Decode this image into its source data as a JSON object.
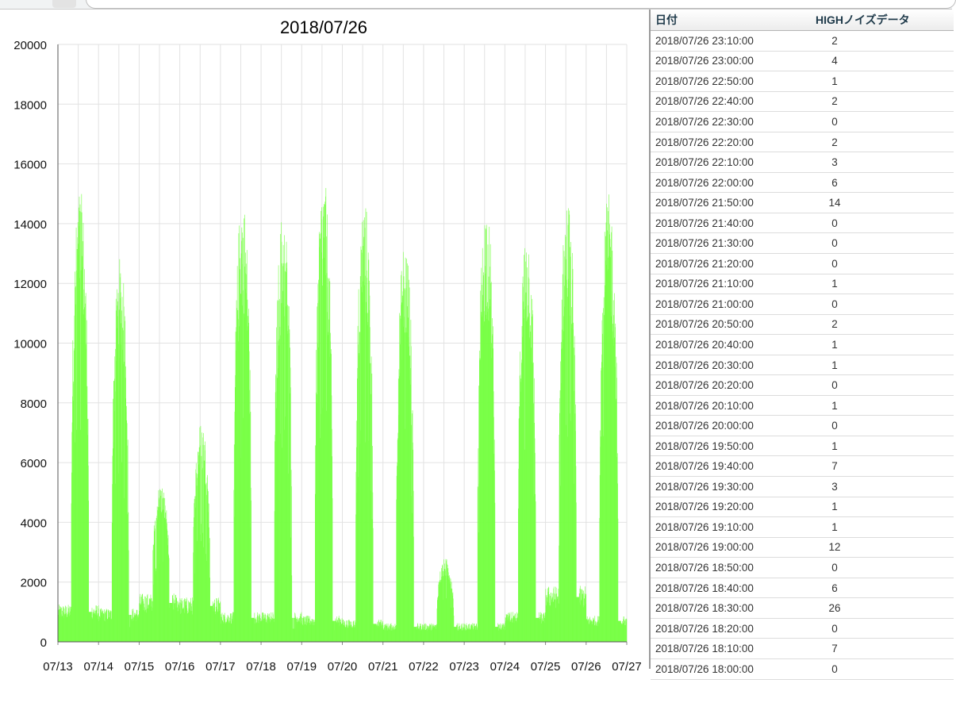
{
  "browser": {},
  "chart_data": {
    "type": "bar",
    "title": "2018/07/26",
    "xlabel": "",
    "ylabel": "",
    "ylim": [
      0,
      20000
    ],
    "yticks": [
      0,
      2000,
      4000,
      6000,
      8000,
      10000,
      12000,
      14000,
      16000,
      18000,
      20000
    ],
    "x_tick_labels": [
      "07/13",
      "07/14",
      "07/15",
      "07/16",
      "07/17",
      "07/18",
      "07/19",
      "07/20",
      "07/21",
      "07/22",
      "07/23",
      "07/24",
      "07/25",
      "07/26",
      "07/27"
    ],
    "grid": true,
    "bar_color": "#77ff44",
    "x_range": [
      "2018-07-13 00:00",
      "2018-07-27 00:00"
    ],
    "sample_interval_minutes": 10,
    "day_profiles": [
      {
        "date": "07/13",
        "base": 1000,
        "peak": 15200,
        "active_from": 0.32,
        "active_to": 0.82
      },
      {
        "date": "07/14",
        "base": 900,
        "peak": 12900,
        "active_from": 0.32,
        "active_to": 0.8
      },
      {
        "date": "07/15",
        "base": 1300,
        "peak": 5300,
        "active_from": 0.32,
        "active_to": 0.8
      },
      {
        "date": "07/16",
        "base": 1200,
        "peak": 7400,
        "active_from": 0.32,
        "active_to": 0.8
      },
      {
        "date": "07/17",
        "base": 800,
        "peak": 15000,
        "active_from": 0.32,
        "active_to": 0.82
      },
      {
        "date": "07/18",
        "base": 800,
        "peak": 14500,
        "active_from": 0.32,
        "active_to": 0.82
      },
      {
        "date": "07/19",
        "base": 700,
        "peak": 15600,
        "active_from": 0.32,
        "active_to": 0.82
      },
      {
        "date": "07/20",
        "base": 600,
        "peak": 14900,
        "active_from": 0.32,
        "active_to": 0.82
      },
      {
        "date": "07/21",
        "base": 500,
        "peak": 13600,
        "active_from": 0.32,
        "active_to": 0.82
      },
      {
        "date": "07/22",
        "base": 500,
        "peak": 2800,
        "active_from": 0.32,
        "active_to": 0.8
      },
      {
        "date": "07/23",
        "base": 500,
        "peak": 14800,
        "active_from": 0.32,
        "active_to": 0.82
      },
      {
        "date": "07/24",
        "base": 800,
        "peak": 14000,
        "active_from": 0.32,
        "active_to": 0.82
      },
      {
        "date": "07/25",
        "base": 1500,
        "peak": 14900,
        "active_from": 0.32,
        "active_to": 0.82
      },
      {
        "date": "07/26",
        "base": 700,
        "peak": 15000,
        "active_from": 0.32,
        "active_to": 0.85
      }
    ]
  },
  "table": {
    "headers": [
      "日付",
      "HIGHノイズデータ"
    ],
    "rows": [
      {
        "date": "2018/07/26 23:10:00",
        "value": "2"
      },
      {
        "date": "2018/07/26 23:00:00",
        "value": "4"
      },
      {
        "date": "2018/07/26 22:50:00",
        "value": "1"
      },
      {
        "date": "2018/07/26 22:40:00",
        "value": "2"
      },
      {
        "date": "2018/07/26 22:30:00",
        "value": "0"
      },
      {
        "date": "2018/07/26 22:20:00",
        "value": "2"
      },
      {
        "date": "2018/07/26 22:10:00",
        "value": "3"
      },
      {
        "date": "2018/07/26 22:00:00",
        "value": "6"
      },
      {
        "date": "2018/07/26 21:50:00",
        "value": "14"
      },
      {
        "date": "2018/07/26 21:40:00",
        "value": "0"
      },
      {
        "date": "2018/07/26 21:30:00",
        "value": "0"
      },
      {
        "date": "2018/07/26 21:20:00",
        "value": "0"
      },
      {
        "date": "2018/07/26 21:10:00",
        "value": "1"
      },
      {
        "date": "2018/07/26 21:00:00",
        "value": "0"
      },
      {
        "date": "2018/07/26 20:50:00",
        "value": "2"
      },
      {
        "date": "2018/07/26 20:40:00",
        "value": "1"
      },
      {
        "date": "2018/07/26 20:30:00",
        "value": "1"
      },
      {
        "date": "2018/07/26 20:20:00",
        "value": "0"
      },
      {
        "date": "2018/07/26 20:10:00",
        "value": "1"
      },
      {
        "date": "2018/07/26 20:00:00",
        "value": "0"
      },
      {
        "date": "2018/07/26 19:50:00",
        "value": "1"
      },
      {
        "date": "2018/07/26 19:40:00",
        "value": "7"
      },
      {
        "date": "2018/07/26 19:30:00",
        "value": "3"
      },
      {
        "date": "2018/07/26 19:20:00",
        "value": "1"
      },
      {
        "date": "2018/07/26 19:10:00",
        "value": "1"
      },
      {
        "date": "2018/07/26 19:00:00",
        "value": "12"
      },
      {
        "date": "2018/07/26 18:50:00",
        "value": "0"
      },
      {
        "date": "2018/07/26 18:40:00",
        "value": "6"
      },
      {
        "date": "2018/07/26 18:30:00",
        "value": "26"
      },
      {
        "date": "2018/07/26 18:20:00",
        "value": "0"
      },
      {
        "date": "2018/07/26 18:10:00",
        "value": "7"
      },
      {
        "date": "2018/07/26 18:00:00",
        "value": "0"
      }
    ]
  }
}
